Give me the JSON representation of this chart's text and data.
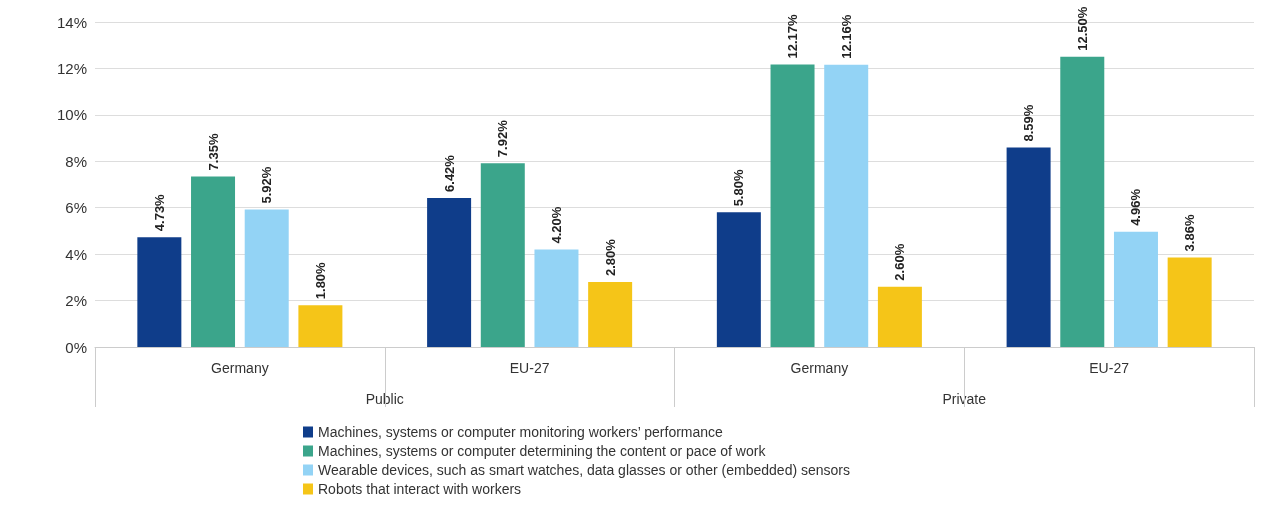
{
  "chart_data": {
    "type": "bar",
    "categories": [
      "Germany",
      "EU-27",
      "Germany",
      "EU-27"
    ],
    "annotations": [
      "Public",
      "Private"
    ],
    "series": [
      {
        "name": "Machines, systems or computer monitoring workers’ performance",
        "color": "#0f3d8a",
        "values": [
          4.73,
          6.42,
          5.8,
          8.59
        ],
        "value_labels": [
          "4.73%",
          "6.42%",
          "5.80%",
          "8.59%"
        ]
      },
      {
        "name": "Machines, systems or computer determining the content or pace of work",
        "color": "#3ba58b",
        "values": [
          7.35,
          7.92,
          12.17,
          12.5
        ],
        "value_labels": [
          "7.35%",
          "7.92%",
          "12.17%",
          "12.50%"
        ]
      },
      {
        "name": "Wearable devices, such as smart watches, data glasses or other (embedded) sensors",
        "color": "#93d3f5",
        "values": [
          5.92,
          4.2,
          12.16,
          4.96
        ],
        "value_labels": [
          "5.92%",
          "4.20%",
          "12.16%",
          "4.96%"
        ]
      },
      {
        "name": "Robots that interact with workers",
        "color": "#f5c518",
        "values": [
          1.8,
          2.8,
          2.6,
          3.86
        ],
        "value_labels": [
          "1.80%",
          "2.80%",
          "2.60%",
          "3.86%"
        ]
      }
    ],
    "ylim": [
      0,
      14
    ],
    "yticks": [
      {
        "value": 0,
        "label": "0%"
      },
      {
        "value": 2,
        "label": "2%"
      },
      {
        "value": 4,
        "label": "4%"
      },
      {
        "value": 6,
        "label": "6%"
      },
      {
        "value": 8,
        "label": "8%"
      },
      {
        "value": 10,
        "label": "10%"
      },
      {
        "value": 12,
        "label": "12%"
      },
      {
        "value": 14,
        "label": "14%"
      }
    ],
    "grid": "y",
    "legend": "bottom"
  }
}
